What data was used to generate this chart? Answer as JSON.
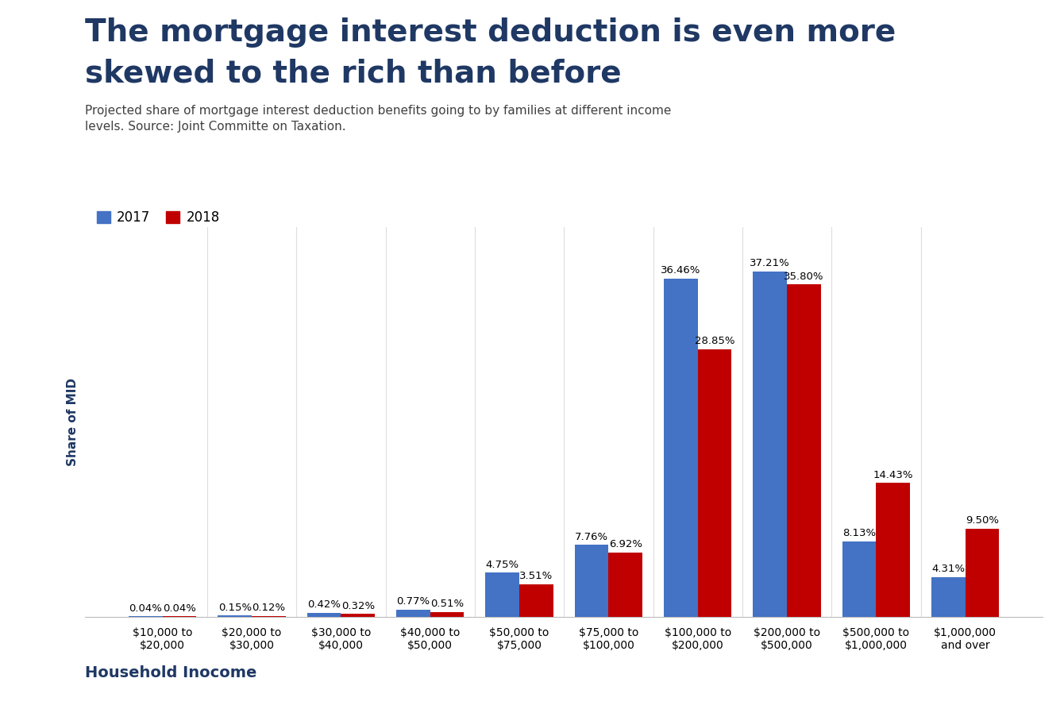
{
  "title_line1": "The mortgage interest deduction is even more",
  "title_line2": "skewed to the rich than before",
  "subtitle": "Projected share of mortgage interest deduction benefits going to by families at different income\nlevels. Source: Joint Committe on Taxation.",
  "xlabel": "Household Inocome",
  "ylabel": "Share of MID",
  "categories": [
    "$10,000 to\n$20,000",
    "$20,000 to\n$30,000",
    "$30,000 to\n$40,000",
    "$40,000 to\n$50,000",
    "$50,000 to\n$75,000",
    "$75,000 to\n$100,000",
    "$100,000 to\n$200,000",
    "$200,000 to\n$500,000",
    "$500,000 to\n$1,000,000",
    "$1,000,000\nand over"
  ],
  "values_2017": [
    0.04,
    0.15,
    0.42,
    0.77,
    4.75,
    7.76,
    36.46,
    37.21,
    8.13,
    4.31
  ],
  "values_2018": [
    0.04,
    0.12,
    0.32,
    0.51,
    3.51,
    6.92,
    28.85,
    35.8,
    14.43,
    9.5
  ],
  "color_2017": "#4472C4",
  "color_2018": "#C00000",
  "background_color": "#FFFFFF",
  "title_color": "#1F3864",
  "subtitle_color": "#404040",
  "xlabel_color": "#1F3864",
  "ylabel_color": "#1F3864",
  "legend_labels": [
    "2017",
    "2018"
  ],
  "bar_width": 0.38,
  "ylim": [
    0,
    42
  ],
  "label_fontsize": 9.5,
  "title_fontsize": 28,
  "subtitle_fontsize": 11,
  "legend_fontsize": 12,
  "xlabel_fontsize": 14,
  "ylabel_fontsize": 11,
  "xtick_fontsize": 10
}
